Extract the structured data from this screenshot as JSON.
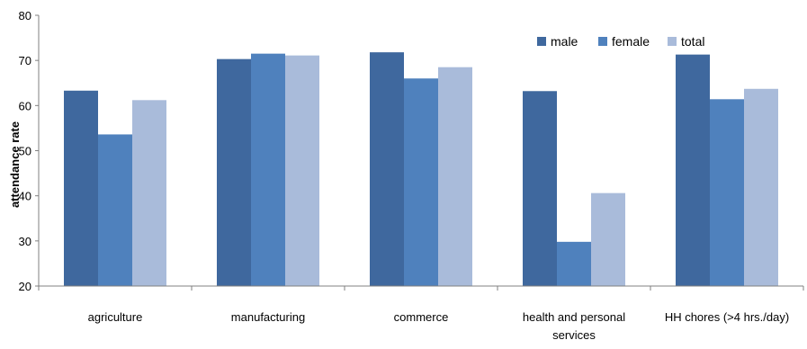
{
  "chart_data": {
    "type": "bar",
    "title": "",
    "xlabel": "",
    "ylabel": "attendance rate",
    "ylim": [
      20,
      80
    ],
    "yticks": [
      20,
      30,
      40,
      50,
      60,
      70,
      80
    ],
    "grid": false,
    "legend_position": "top-right",
    "categories": [
      [
        "agriculture"
      ],
      [
        "manufacturing"
      ],
      [
        "commerce"
      ],
      [
        "health and personal",
        "services"
      ],
      [
        "HH chores (>4 hrs./day)"
      ]
    ],
    "series": [
      {
        "name": "male",
        "color": "#3F689E",
        "values": [
          63.3,
          70.3,
          71.8,
          63.2,
          71.3
        ]
      },
      {
        "name": "female",
        "color": "#4F81BD",
        "values": [
          53.6,
          71.5,
          66.0,
          29.8,
          61.4
        ]
      },
      {
        "name": "total",
        "color": "#A9BBDA",
        "values": [
          61.2,
          71.1,
          68.5,
          40.6,
          63.7
        ]
      }
    ]
  }
}
